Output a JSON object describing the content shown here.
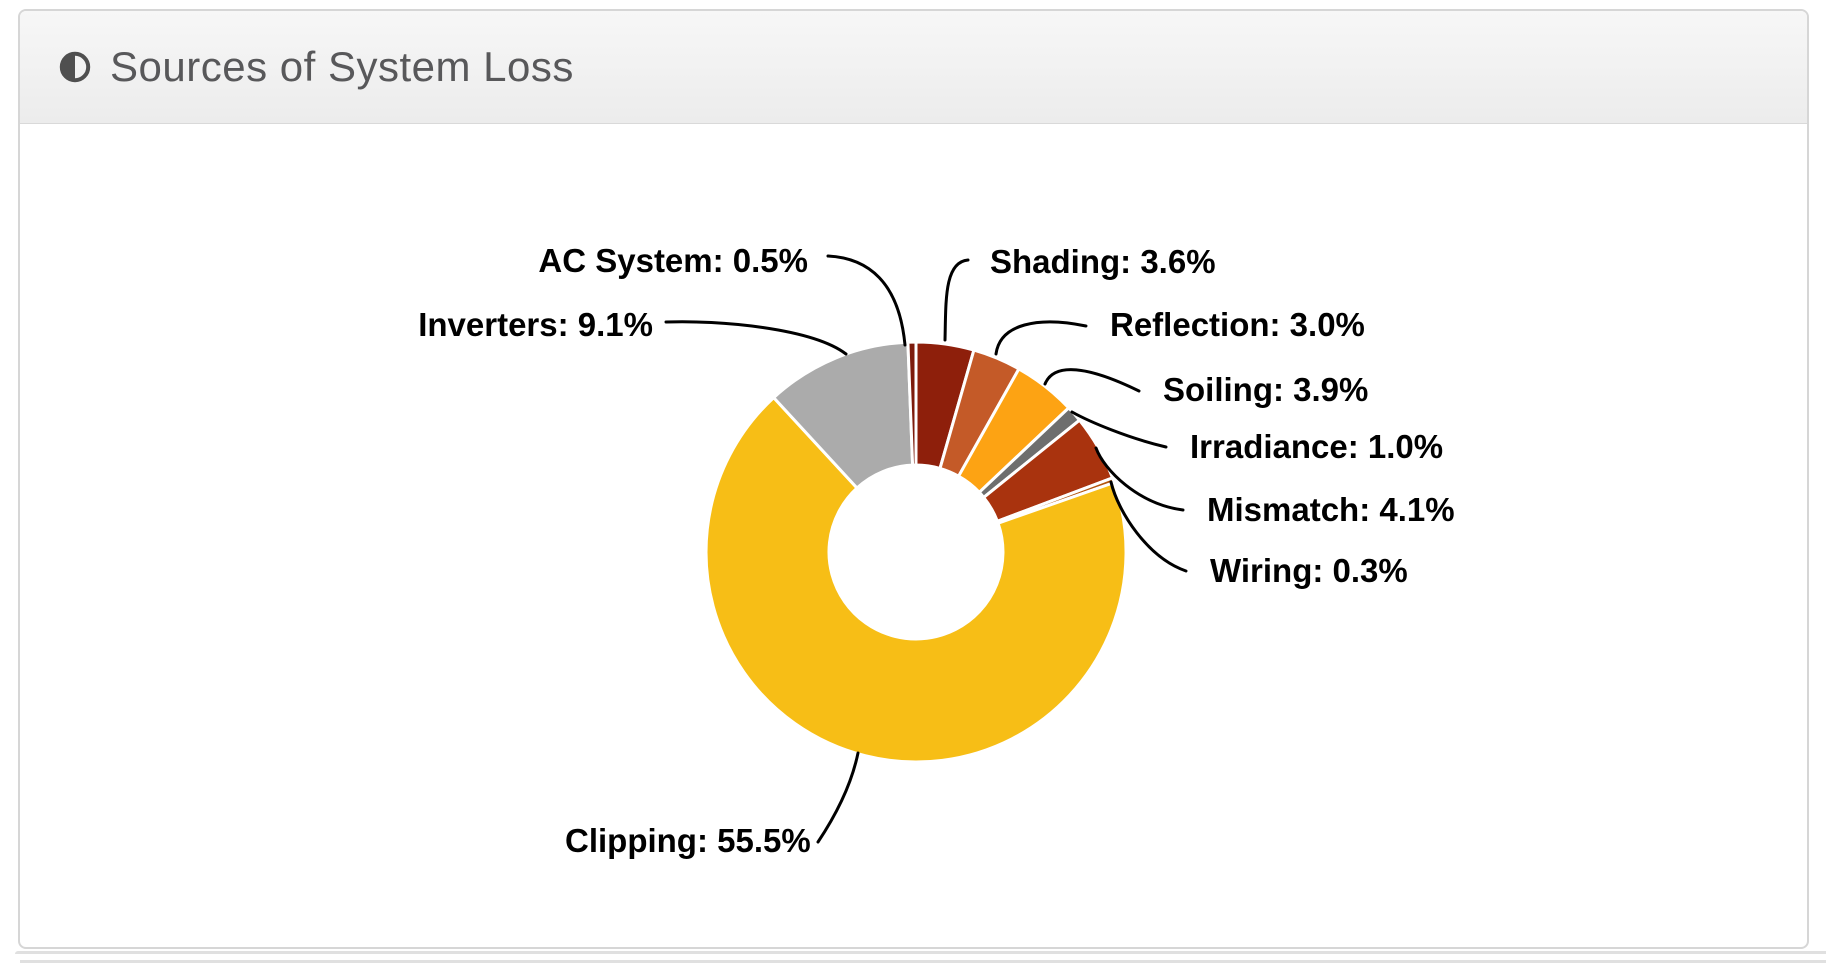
{
  "card": {
    "title": "Sources of System Loss",
    "title_icon": "adjust-icon"
  },
  "chart_data": {
    "type": "pie",
    "title": "Sources of System Loss",
    "donut": true,
    "unit": "%",
    "start_angle_deg": 0,
    "direction": "clockwise",
    "label_format": "{label}: {value}%",
    "slices": [
      {
        "label": "Shading",
        "value": 3.6,
        "color": "#8E1F0B"
      },
      {
        "label": "Reflection",
        "value": 3.0,
        "color": "#C45A28"
      },
      {
        "label": "Soiling",
        "value": 3.9,
        "color": "#FDA313"
      },
      {
        "label": "Irradiance",
        "value": 1.0,
        "color": "#6E6E6E"
      },
      {
        "label": "Mismatch",
        "value": 4.1,
        "color": "#A9330E"
      },
      {
        "label": "Wiring",
        "value": 0.3,
        "color": "#B4560E"
      },
      {
        "label": "Clipping",
        "value": 55.5,
        "color": "#F7BE16"
      },
      {
        "label": "Inverters",
        "value": 9.1,
        "color": "#ABABAB"
      },
      {
        "label": "AC System",
        "value": 0.5,
        "color": "#7D1B0C"
      }
    ]
  }
}
